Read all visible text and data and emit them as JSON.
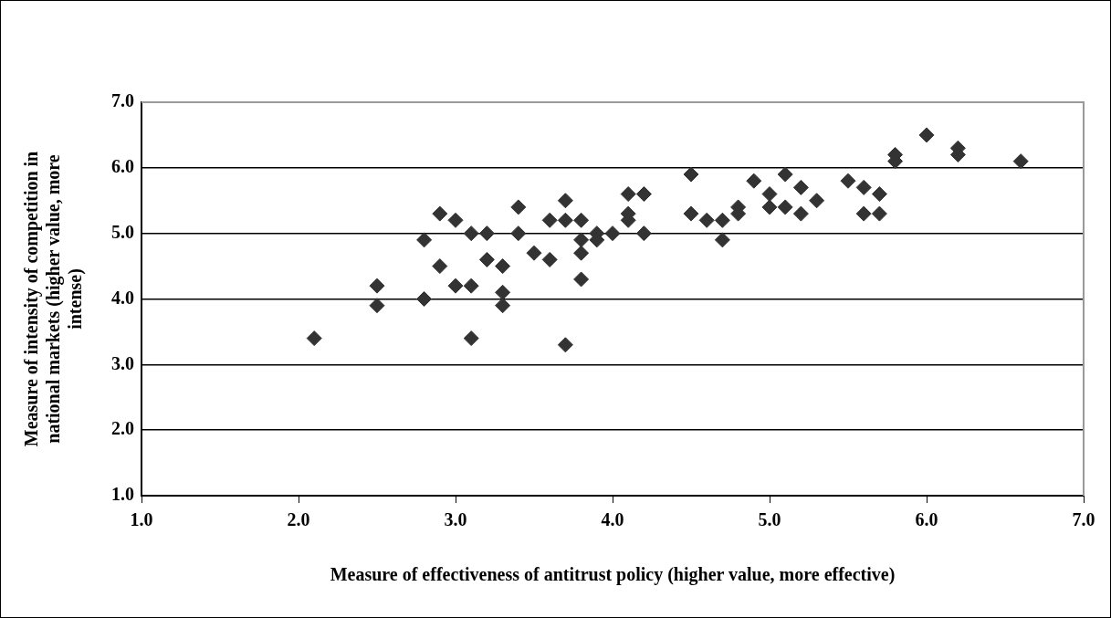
{
  "chart_data": {
    "type": "scatter",
    "xlabel": "Measure of effectiveness of antitrust policy (higher value, more effective)",
    "ylabel": "Measure of intensity of competition in national markets (higher value, more intense)",
    "x": [
      2.1,
      2.5,
      2.5,
      2.8,
      2.8,
      2.9,
      2.9,
      3.0,
      3.0,
      3.1,
      3.1,
      3.1,
      3.2,
      3.2,
      3.3,
      3.3,
      3.3,
      3.4,
      3.4,
      3.5,
      3.6,
      3.6,
      3.7,
      3.7,
      3.7,
      3.8,
      3.8,
      3.8,
      3.8,
      3.9,
      3.9,
      4.0,
      4.1,
      4.1,
      4.1,
      4.2,
      4.2,
      4.5,
      4.5,
      4.6,
      4.7,
      4.7,
      4.8,
      4.8,
      4.9,
      5.0,
      5.0,
      5.1,
      5.1,
      5.2,
      5.2,
      5.3,
      5.5,
      5.6,
      5.6,
      5.7,
      5.7,
      5.8,
      5.8,
      6.0,
      6.2,
      6.2,
      6.6
    ],
    "values": [
      3.4,
      4.2,
      3.9,
      4.9,
      4.0,
      5.3,
      4.5,
      5.2,
      4.2,
      5.0,
      4.2,
      3.4,
      5.0,
      4.6,
      4.5,
      4.1,
      3.9,
      5.4,
      5.0,
      4.7,
      5.2,
      4.6,
      5.5,
      5.2,
      3.3,
      5.2,
      4.9,
      4.7,
      4.3,
      5.0,
      4.9,
      5.0,
      5.6,
      5.3,
      5.2,
      5.6,
      5.0,
      5.9,
      5.3,
      5.2,
      5.2,
      4.9,
      5.4,
      5.3,
      5.8,
      5.6,
      5.4,
      5.9,
      5.4,
      5.7,
      5.3,
      5.5,
      5.8,
      5.7,
      5.3,
      5.6,
      5.3,
      6.2,
      6.1,
      6.5,
      6.3,
      6.2,
      6.1
    ],
    "color": "#333333",
    "marker": "diamond",
    "grid": "y",
    "xlim": [
      1.0,
      7.0
    ],
    "xticks": [
      {
        "value": 1,
        "label": "1.0"
      },
      {
        "value": 2,
        "label": "2.0"
      },
      {
        "value": 3,
        "label": "3.0"
      },
      {
        "value": 4,
        "label": "4.0"
      },
      {
        "value": 5,
        "label": "5.0"
      },
      {
        "value": 6,
        "label": "6.0"
      },
      {
        "value": 7,
        "label": "7.0"
      }
    ],
    "ylim": [
      1.0,
      7.0
    ],
    "yticks": [
      {
        "value": 1,
        "label": "1.0"
      },
      {
        "value": 2,
        "label": "2.0"
      },
      {
        "value": 3,
        "label": "3.0"
      },
      {
        "value": 4,
        "label": "4.0"
      },
      {
        "value": 5,
        "label": "5.0"
      },
      {
        "value": 6,
        "label": "6.0"
      },
      {
        "value": 7,
        "label": "7.0"
      }
    ]
  }
}
